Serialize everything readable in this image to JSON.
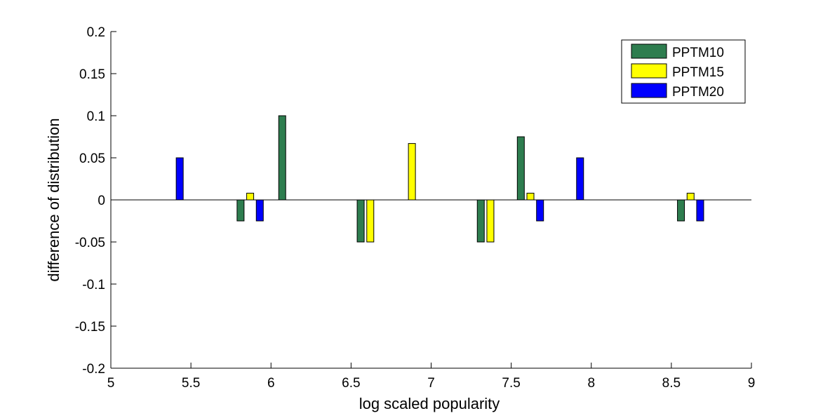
{
  "chart_data": {
    "type": "bar",
    "title": "",
    "xlabel": "log scaled popularity",
    "ylabel": "difference of distribution",
    "xlim": [
      5,
      9
    ],
    "ylim": [
      -0.2,
      0.2
    ],
    "xticks": [
      5,
      5.5,
      6,
      6.5,
      7,
      7.5,
      8,
      8.5,
      9
    ],
    "xtick_labels": [
      "5",
      "5.5",
      "6",
      "6.5",
      "7",
      "7.5",
      "8",
      "8.5",
      "9"
    ],
    "yticks": [
      -0.2,
      -0.15,
      -0.1,
      -0.05,
      0,
      0.05,
      0.1,
      0.15,
      0.2
    ],
    "ytick_labels": [
      "-0.2",
      "-0.15",
      "-0.1",
      "-0.05",
      "0",
      "0.05",
      "0.1",
      "0.15",
      "0.2"
    ],
    "grid": false,
    "legend_position": "top-right",
    "series": [
      {
        "name": "PPTM10",
        "color": "#2e7d4f",
        "points": [
          {
            "x": 5.43,
            "y": 0
          },
          {
            "x": 5.81,
            "y": -0.025
          },
          {
            "x": 6.07,
            "y": 0.1
          },
          {
            "x": 6.56,
            "y": -0.05
          },
          {
            "x": 6.88,
            "y": 0
          },
          {
            "x": 7.31,
            "y": -0.05
          },
          {
            "x": 7.56,
            "y": 0.075
          },
          {
            "x": 7.93,
            "y": 0
          },
          {
            "x": 8.56,
            "y": -0.025
          }
        ]
      },
      {
        "name": "PPTM15",
        "color": "#ffff00",
        "points": [
          {
            "x": 5.43,
            "y": 0
          },
          {
            "x": 5.87,
            "y": 0.008
          },
          {
            "x": 6.07,
            "y": 0
          },
          {
            "x": 6.62,
            "y": -0.05
          },
          {
            "x": 6.88,
            "y": 0.067
          },
          {
            "x": 7.37,
            "y": -0.05
          },
          {
            "x": 7.62,
            "y": 0.008
          },
          {
            "x": 7.93,
            "y": 0
          },
          {
            "x": 8.62,
            "y": 0.008
          }
        ]
      },
      {
        "name": "PPTM20",
        "color": "#0000ff",
        "points": [
          {
            "x": 5.43,
            "y": 0.05
          },
          {
            "x": 5.93,
            "y": -0.025
          },
          {
            "x": 6.07,
            "y": 0
          },
          {
            "x": 6.62,
            "y": 0
          },
          {
            "x": 6.88,
            "y": 0
          },
          {
            "x": 7.37,
            "y": 0
          },
          {
            "x": 7.68,
            "y": -0.025
          },
          {
            "x": 7.93,
            "y": 0.05
          },
          {
            "x": 8.68,
            "y": -0.025
          }
        ]
      }
    ]
  }
}
